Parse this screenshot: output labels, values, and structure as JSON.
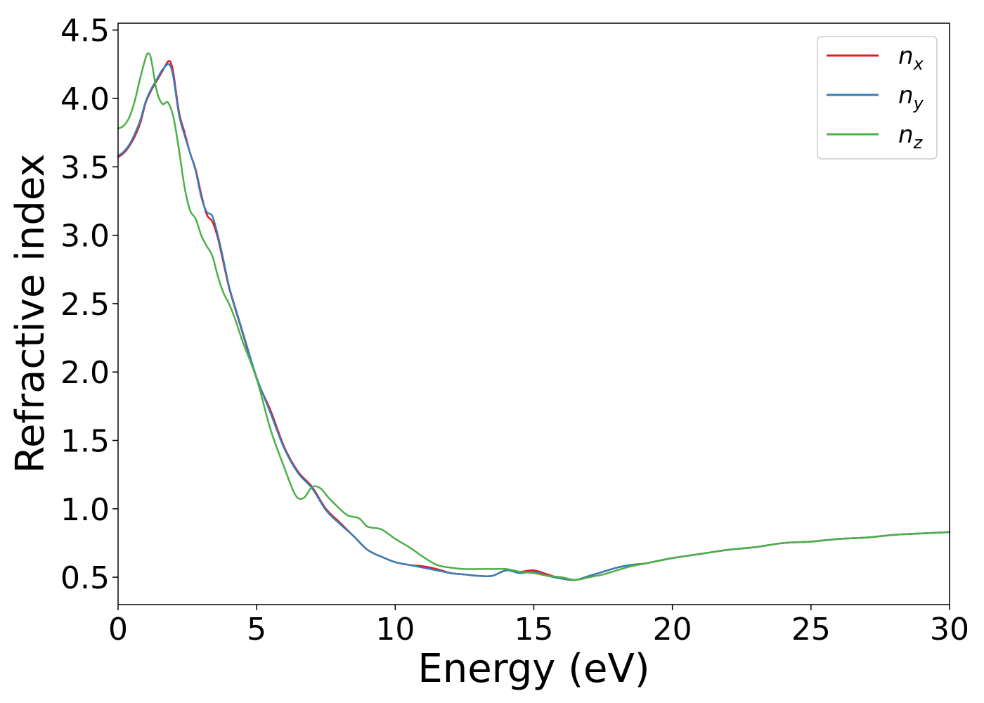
{
  "chart_data": {
    "type": "line",
    "title": "",
    "xlabel": "Energy (eV)",
    "ylabel": "Refractive index",
    "xlim": [
      0,
      30
    ],
    "ylim": [
      0.3,
      4.55
    ],
    "xticks": [
      "0",
      "5",
      "10",
      "15",
      "20",
      "25",
      "30"
    ],
    "yticks": [
      "0.5",
      "1.0",
      "1.5",
      "2.0",
      "2.5",
      "3.0",
      "3.5",
      "4.0",
      "4.5"
    ],
    "grid": false,
    "legend_position": "top-right",
    "series": [
      {
        "name": "n",
        "subscript": "x",
        "color": "#e41a1c",
        "x": [
          0,
          0.2,
          0.4,
          0.6,
          0.8,
          1.0,
          1.2,
          1.4,
          1.6,
          1.8,
          1.9,
          2.0,
          2.2,
          2.4,
          2.6,
          2.8,
          3.0,
          3.2,
          3.4,
          3.6,
          3.8,
          4.0,
          4.2,
          4.5,
          5.0,
          5.5,
          6.0,
          6.5,
          7.0,
          7.5,
          8.0,
          8.5,
          9.0,
          9.5,
          10.0,
          10.5,
          11.0,
          11.5,
          12.0,
          12.5,
          13.0,
          13.5,
          14.0,
          14.5,
          15.0,
          15.5,
          16.0,
          16.5,
          17.0,
          17.5,
          18.0,
          18.5,
          19.0,
          19.5,
          20,
          21,
          22,
          23,
          24,
          25,
          26,
          27,
          28,
          29,
          30
        ],
        "y": [
          3.57,
          3.6,
          3.65,
          3.72,
          3.82,
          3.97,
          4.06,
          4.13,
          4.2,
          4.27,
          4.26,
          4.18,
          3.9,
          3.75,
          3.6,
          3.48,
          3.3,
          3.15,
          3.1,
          2.98,
          2.8,
          2.62,
          2.48,
          2.28,
          1.95,
          1.72,
          1.45,
          1.27,
          1.16,
          1.0,
          0.9,
          0.8,
          0.7,
          0.65,
          0.61,
          0.59,
          0.58,
          0.56,
          0.53,
          0.52,
          0.51,
          0.51,
          0.55,
          0.54,
          0.55,
          0.52,
          0.49,
          0.48,
          0.51,
          0.54,
          0.57,
          0.59,
          0.6,
          0.62,
          0.64,
          0.67,
          0.7,
          0.72,
          0.75,
          0.76,
          0.78,
          0.79,
          0.81,
          0.82,
          0.83
        ]
      },
      {
        "name": "n",
        "subscript": "y",
        "color": "#377eb8",
        "x": [
          0,
          0.2,
          0.4,
          0.6,
          0.8,
          1.0,
          1.2,
          1.4,
          1.6,
          1.8,
          1.9,
          2.0,
          2.2,
          2.4,
          2.6,
          2.8,
          3.0,
          3.2,
          3.4,
          3.6,
          3.8,
          4.0,
          4.2,
          4.5,
          5.0,
          5.5,
          6.0,
          6.5,
          7.0,
          7.5,
          8.0,
          8.5,
          9.0,
          9.5,
          10.0,
          10.5,
          11.0,
          11.5,
          12.0,
          12.5,
          13.0,
          13.5,
          14.0,
          14.5,
          15.0,
          15.5,
          16.0,
          16.5,
          17.0,
          17.5,
          18.0,
          18.5,
          19.0,
          19.5,
          20,
          21,
          22,
          23,
          24,
          25,
          26,
          27,
          28,
          29,
          30
        ],
        "y": [
          3.58,
          3.61,
          3.66,
          3.74,
          3.84,
          3.98,
          4.07,
          4.14,
          4.21,
          4.25,
          4.23,
          4.15,
          3.88,
          3.73,
          3.6,
          3.47,
          3.28,
          3.17,
          3.14,
          3.0,
          2.82,
          2.63,
          2.49,
          2.29,
          1.96,
          1.7,
          1.44,
          1.26,
          1.15,
          0.99,
          0.89,
          0.8,
          0.7,
          0.65,
          0.61,
          0.59,
          0.57,
          0.55,
          0.53,
          0.52,
          0.51,
          0.51,
          0.55,
          0.53,
          0.54,
          0.51,
          0.49,
          0.48,
          0.51,
          0.54,
          0.57,
          0.59,
          0.6,
          0.62,
          0.64,
          0.67,
          0.7,
          0.72,
          0.75,
          0.76,
          0.78,
          0.79,
          0.81,
          0.82,
          0.83
        ]
      },
      {
        "name": "n",
        "subscript": "z",
        "color": "#4daf4a",
        "x": [
          0,
          0.2,
          0.4,
          0.6,
          0.8,
          1.0,
          1.1,
          1.2,
          1.4,
          1.6,
          1.8,
          2.0,
          2.2,
          2.4,
          2.6,
          2.8,
          3.0,
          3.2,
          3.4,
          3.6,
          3.8,
          4.0,
          4.2,
          4.5,
          5.0,
          5.5,
          6.0,
          6.4,
          6.7,
          7.0,
          7.3,
          7.6,
          8.0,
          8.3,
          8.7,
          9.0,
          9.5,
          10.0,
          10.5,
          11.0,
          11.5,
          12.0,
          12.5,
          13.0,
          13.5,
          14.0,
          14.5,
          15.0,
          15.5,
          16.0,
          16.5,
          17.0,
          17.5,
          18.0,
          18.5,
          19.0,
          19.5,
          20,
          21,
          22,
          23,
          24,
          25,
          26,
          27,
          28,
          29,
          30
        ],
        "y": [
          3.78,
          3.8,
          3.86,
          3.98,
          4.15,
          4.3,
          4.33,
          4.28,
          4.05,
          3.96,
          3.97,
          3.86,
          3.62,
          3.35,
          3.18,
          3.12,
          3.0,
          2.92,
          2.85,
          2.7,
          2.58,
          2.5,
          2.4,
          2.22,
          1.95,
          1.58,
          1.3,
          1.1,
          1.08,
          1.16,
          1.15,
          1.08,
          1.0,
          0.95,
          0.93,
          0.87,
          0.85,
          0.78,
          0.72,
          0.65,
          0.59,
          0.57,
          0.56,
          0.56,
          0.56,
          0.56,
          0.54,
          0.53,
          0.51,
          0.5,
          0.48,
          0.5,
          0.52,
          0.55,
          0.58,
          0.6,
          0.62,
          0.64,
          0.67,
          0.7,
          0.72,
          0.75,
          0.76,
          0.78,
          0.79,
          0.81,
          0.82,
          0.83
        ]
      }
    ]
  }
}
